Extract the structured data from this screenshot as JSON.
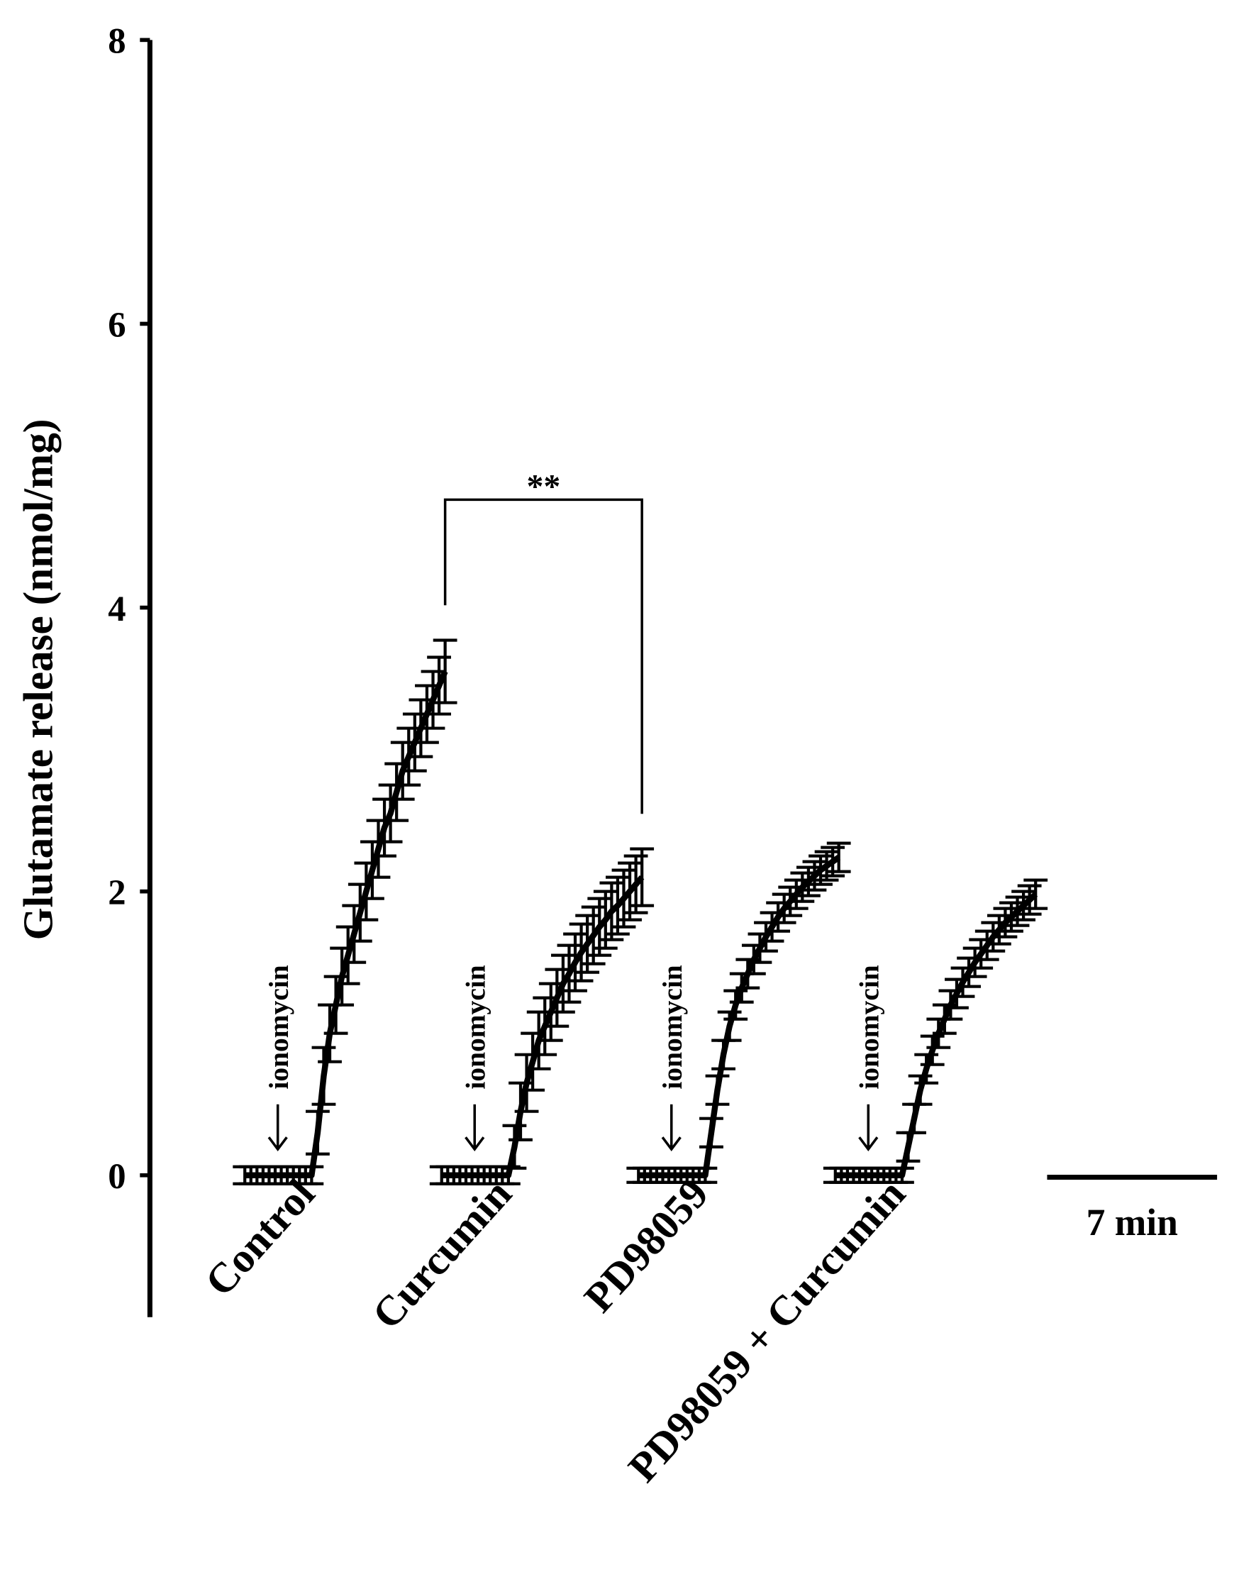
{
  "chart_data": {
    "type": "line",
    "y_label": "Glutamate release (nmol/mg)",
    "ylim": [
      -1,
      8
    ],
    "yticks": [
      0,
      2,
      4,
      6,
      8
    ],
    "stimulus_label": "ionomycin",
    "significance_label": "**",
    "scale_bar": {
      "label": "7 min",
      "length": 7
    },
    "x": [
      0,
      0.25,
      0.5,
      0.75,
      1,
      1.25,
      1.5,
      1.75,
      2,
      2.25,
      2.5,
      2.75,
      3,
      3.25,
      3.5,
      3.75,
      4,
      4.25,
      4.5,
      4.75,
      5,
      5.25,
      5.5,
      5.75,
      6,
      6.25,
      6.5,
      6.75,
      7,
      7.25,
      7.5,
      7.75,
      8,
      8.25
    ],
    "series": [
      {
        "name": "Control",
        "color": "#000000",
        "values": [
          0,
          0,
          0,
          0,
          0,
          0,
          0,
          0,
          0,
          0,
          0,
          0,
          0.3,
          0.7,
          1.0,
          1.2,
          1.4,
          1.55,
          1.7,
          1.85,
          2.0,
          2.15,
          2.3,
          2.45,
          2.55,
          2.7,
          2.85,
          2.95,
          3.05,
          3.15,
          3.25,
          3.35,
          3.45,
          3.55
        ],
        "errors": [
          0.06,
          0.06,
          0.06,
          0.06,
          0.06,
          0.06,
          0.06,
          0.06,
          0.06,
          0.06,
          0.06,
          0.06,
          0.15,
          0.2,
          0.2,
          0.2,
          0.2,
          0.2,
          0.2,
          0.2,
          0.2,
          0.2,
          0.2,
          0.2,
          0.2,
          0.2,
          0.2,
          0.2,
          0.2,
          0.2,
          0.2,
          0.2,
          0.2,
          0.22
        ]
      },
      {
        "name": "Curcumin",
        "color": "#000000",
        "values": [
          0,
          0,
          0,
          0,
          0,
          0,
          0,
          0,
          0,
          0,
          0,
          0,
          0.2,
          0.45,
          0.65,
          0.8,
          0.95,
          1.05,
          1.15,
          1.25,
          1.35,
          1.42,
          1.5,
          1.57,
          1.63,
          1.69,
          1.75,
          1.8,
          1.86,
          1.9,
          1.95,
          2.0,
          2.05,
          2.1
        ],
        "errors": [
          0.06,
          0.06,
          0.06,
          0.06,
          0.06,
          0.06,
          0.06,
          0.06,
          0.06,
          0.06,
          0.06,
          0.06,
          0.15,
          0.2,
          0.2,
          0.2,
          0.2,
          0.2,
          0.2,
          0.2,
          0.2,
          0.2,
          0.2,
          0.2,
          0.2,
          0.2,
          0.2,
          0.2,
          0.2,
          0.2,
          0.2,
          0.2,
          0.2,
          0.2
        ]
      },
      {
        "name": "PD98059",
        "color": "#000000",
        "values": [
          0,
          0,
          0,
          0,
          0,
          0,
          0,
          0,
          0,
          0,
          0,
          0,
          0.3,
          0.6,
          0.85,
          1.05,
          1.2,
          1.32,
          1.42,
          1.52,
          1.6,
          1.68,
          1.75,
          1.82,
          1.88,
          1.93,
          1.98,
          2.03,
          2.07,
          2.11,
          2.15,
          2.18,
          2.21,
          2.24
        ],
        "errors": [
          0.05,
          0.05,
          0.05,
          0.05,
          0.05,
          0.05,
          0.05,
          0.05,
          0.05,
          0.05,
          0.05,
          0.05,
          0.1,
          0.1,
          0.1,
          0.1,
          0.1,
          0.1,
          0.1,
          0.1,
          0.1,
          0.1,
          0.1,
          0.1,
          0.1,
          0.1,
          0.1,
          0.1,
          0.1,
          0.1,
          0.1,
          0.1,
          0.1,
          0.1
        ]
      },
      {
        "name": "PD98059 + Curcumin",
        "color": "#000000",
        "values": [
          0,
          0,
          0,
          0,
          0,
          0,
          0,
          0,
          0,
          0,
          0,
          0,
          0.2,
          0.4,
          0.6,
          0.75,
          0.88,
          1.0,
          1.1,
          1.2,
          1.28,
          1.36,
          1.43,
          1.5,
          1.56,
          1.62,
          1.68,
          1.73,
          1.78,
          1.82,
          1.86,
          1.9,
          1.94,
          1.98
        ],
        "errors": [
          0.05,
          0.05,
          0.05,
          0.05,
          0.05,
          0.05,
          0.05,
          0.05,
          0.05,
          0.05,
          0.05,
          0.05,
          0.1,
          0.1,
          0.1,
          0.1,
          0.1,
          0.1,
          0.1,
          0.1,
          0.1,
          0.1,
          0.1,
          0.1,
          0.1,
          0.1,
          0.1,
          0.1,
          0.1,
          0.1,
          0.1,
          0.1,
          0.1,
          0.1
        ]
      }
    ]
  }
}
